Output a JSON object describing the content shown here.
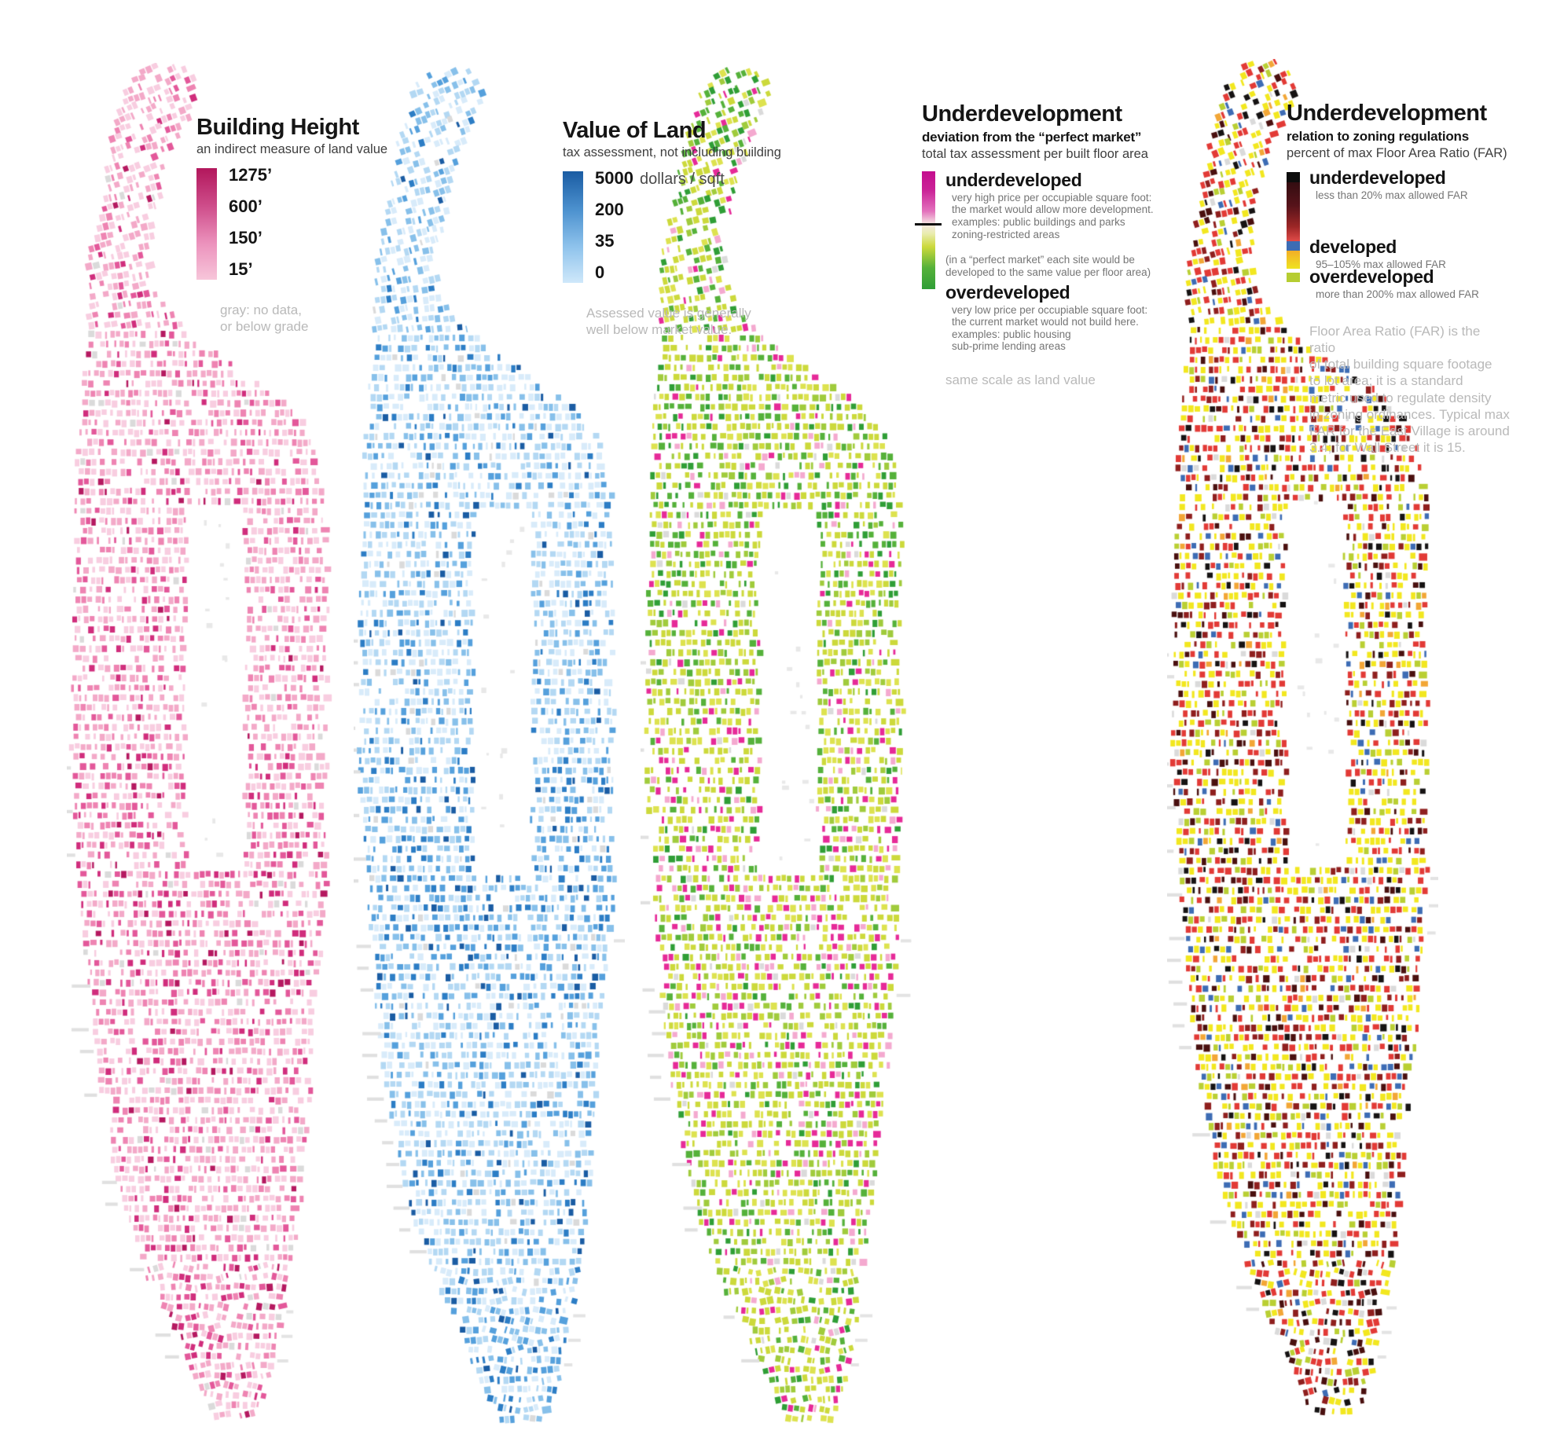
{
  "page": {
    "background": "#ffffff",
    "subject": "Four maps of Manhattan comparing building height, land value and underdevelopment"
  },
  "panels": [
    {
      "id": "building-height",
      "legend": {
        "title": "Building Height",
        "subtitle": "an indirect measure of land value",
        "scale_labels": [
          "1275’",
          "600’",
          "150’",
          "15’"
        ],
        "gradient_top": "#b2175c",
        "gradient_bottom": "#f7c6da",
        "note": "gray: no data,\nor below grade"
      },
      "map": {
        "seed": 11,
        "palette": [
          [
            "#f8cde0",
            30
          ],
          [
            "#f3a9c8",
            24
          ],
          [
            "#ee84b2",
            15
          ],
          [
            "#e3589a",
            8
          ],
          [
            "#d02d7c",
            4
          ],
          [
            "#b51960",
            2
          ]
        ],
        "bands": [
          {
            "t0": 0.5,
            "t1": 0.68,
            "idx": [
              3,
              4,
              5
            ],
            "mult": 2.6
          },
          {
            "t0": 0.86,
            "t1": 1.0,
            "idx": [
              3,
              4,
              5
            ],
            "mult": 2.2
          }
        ]
      }
    },
    {
      "id": "value-of-land",
      "legend": {
        "title": "Value of Land",
        "subtitle": "tax assessment, not including building",
        "scale_labels": [
          "5000",
          "200",
          "35",
          "0"
        ],
        "scale_unit": "dollars / sqft",
        "gradient_top": "#1a5ca3",
        "gradient_bottom": "#cfe8fa",
        "note": "Assessed value is generally\nwell below market value."
      },
      "map": {
        "seed": 22,
        "palette": [
          [
            "#d8ebfa",
            26
          ],
          [
            "#b3d8f3",
            24
          ],
          [
            "#87c0ea",
            17
          ],
          [
            "#55a0dc",
            9
          ],
          [
            "#2c7dc5",
            5
          ],
          [
            "#1a5ca3",
            3
          ]
        ],
        "bands": [
          {
            "t0": 0.5,
            "t1": 0.68,
            "idx": [
              3,
              4,
              5
            ],
            "mult": 2.6
          },
          {
            "t0": 0.86,
            "t1": 1.0,
            "idx": [
              3,
              4,
              5
            ],
            "mult": 2.4
          }
        ]
      }
    },
    {
      "id": "underdevelopment-market",
      "legend": {
        "title": "Underdevelopment",
        "subtitle_bold": "deviation from the “perfect market”",
        "subtitle": "total tax assessment per built floor area",
        "under_heading": "underdeveloped",
        "under_desc": "very high price per occupiable square foot:\nthe market would allow more development.\nexamples:   public buildings and parks\n                     zoning-restricted areas",
        "mid_note": "(in a “perfect market” each site would be\ndeveloped to the same value per floor area)",
        "over_heading": "overdeveloped",
        "over_desc": "very low price per occupiable square foot:\nthe current market would not build here.\nexamples:   public housing\n                     sub-prime lending areas",
        "footnote": "same scale as land value",
        "gradient_underdeveloped": "#c40d8e",
        "gradient_overdeveloped": "#2f9e36"
      },
      "map": {
        "seed": 33,
        "palette": [
          [
            "#ccd93b",
            30
          ],
          [
            "#dde24f",
            18
          ],
          [
            "#a0cb3c",
            14
          ],
          [
            "#55b13a",
            10
          ],
          [
            "#2f9e36",
            6
          ],
          [
            "#e62a98",
            6
          ],
          [
            "#f4a9cf",
            4
          ]
        ],
        "bands": [
          {
            "t0": 0.0,
            "t1": 0.42,
            "idx": [
              3,
              4
            ],
            "mult": 2.0
          },
          {
            "t0": 0.48,
            "t1": 0.8,
            "idx": [
              5,
              6
            ],
            "mult": 2.6
          }
        ]
      }
    },
    {
      "id": "underdevelopment-zoning",
      "legend": {
        "title": "Underdevelopment",
        "subtitle_bold": "relation to zoning regulations",
        "subtitle": "percent of max Floor Area Ratio (FAR)",
        "entries": [
          {
            "swatch": "#0d0d0d",
            "label": "underdeveloped",
            "desc": "less than 20% max allowed FAR"
          },
          {
            "swatch": "#3d6cb4",
            "label": "developed",
            "desc": "95–105% max allowed FAR"
          },
          {
            "swatch": "#b6cd32",
            "label": "overdeveloped",
            "desc": "more than 200% max allowed FAR"
          }
        ],
        "note": "Floor Area Ratio (FAR) is the ratio\nof total building square footage\nto lot area; it is a standard\nmetric used to regulate density\nin zoning ordinances. Typical max\nFAR for the East Village is around\n3.4; for Wall Street it is 15."
      },
      "map": {
        "seed": 44,
        "palette": [
          [
            "#f2e71f",
            30
          ],
          [
            "#e23a36",
            22
          ],
          [
            "#8f1f1e",
            11
          ],
          [
            "#4a100f",
            7
          ],
          [
            "#161313",
            6
          ],
          [
            "#3d6cb4",
            6
          ],
          [
            "#b9cf33",
            8
          ],
          [
            "#f2a636",
            3
          ]
        ],
        "bands": [
          {
            "t0": 0.86,
            "t1": 1.0,
            "idx": [
              3,
              4
            ],
            "mult": 1.8
          }
        ]
      }
    }
  ]
}
